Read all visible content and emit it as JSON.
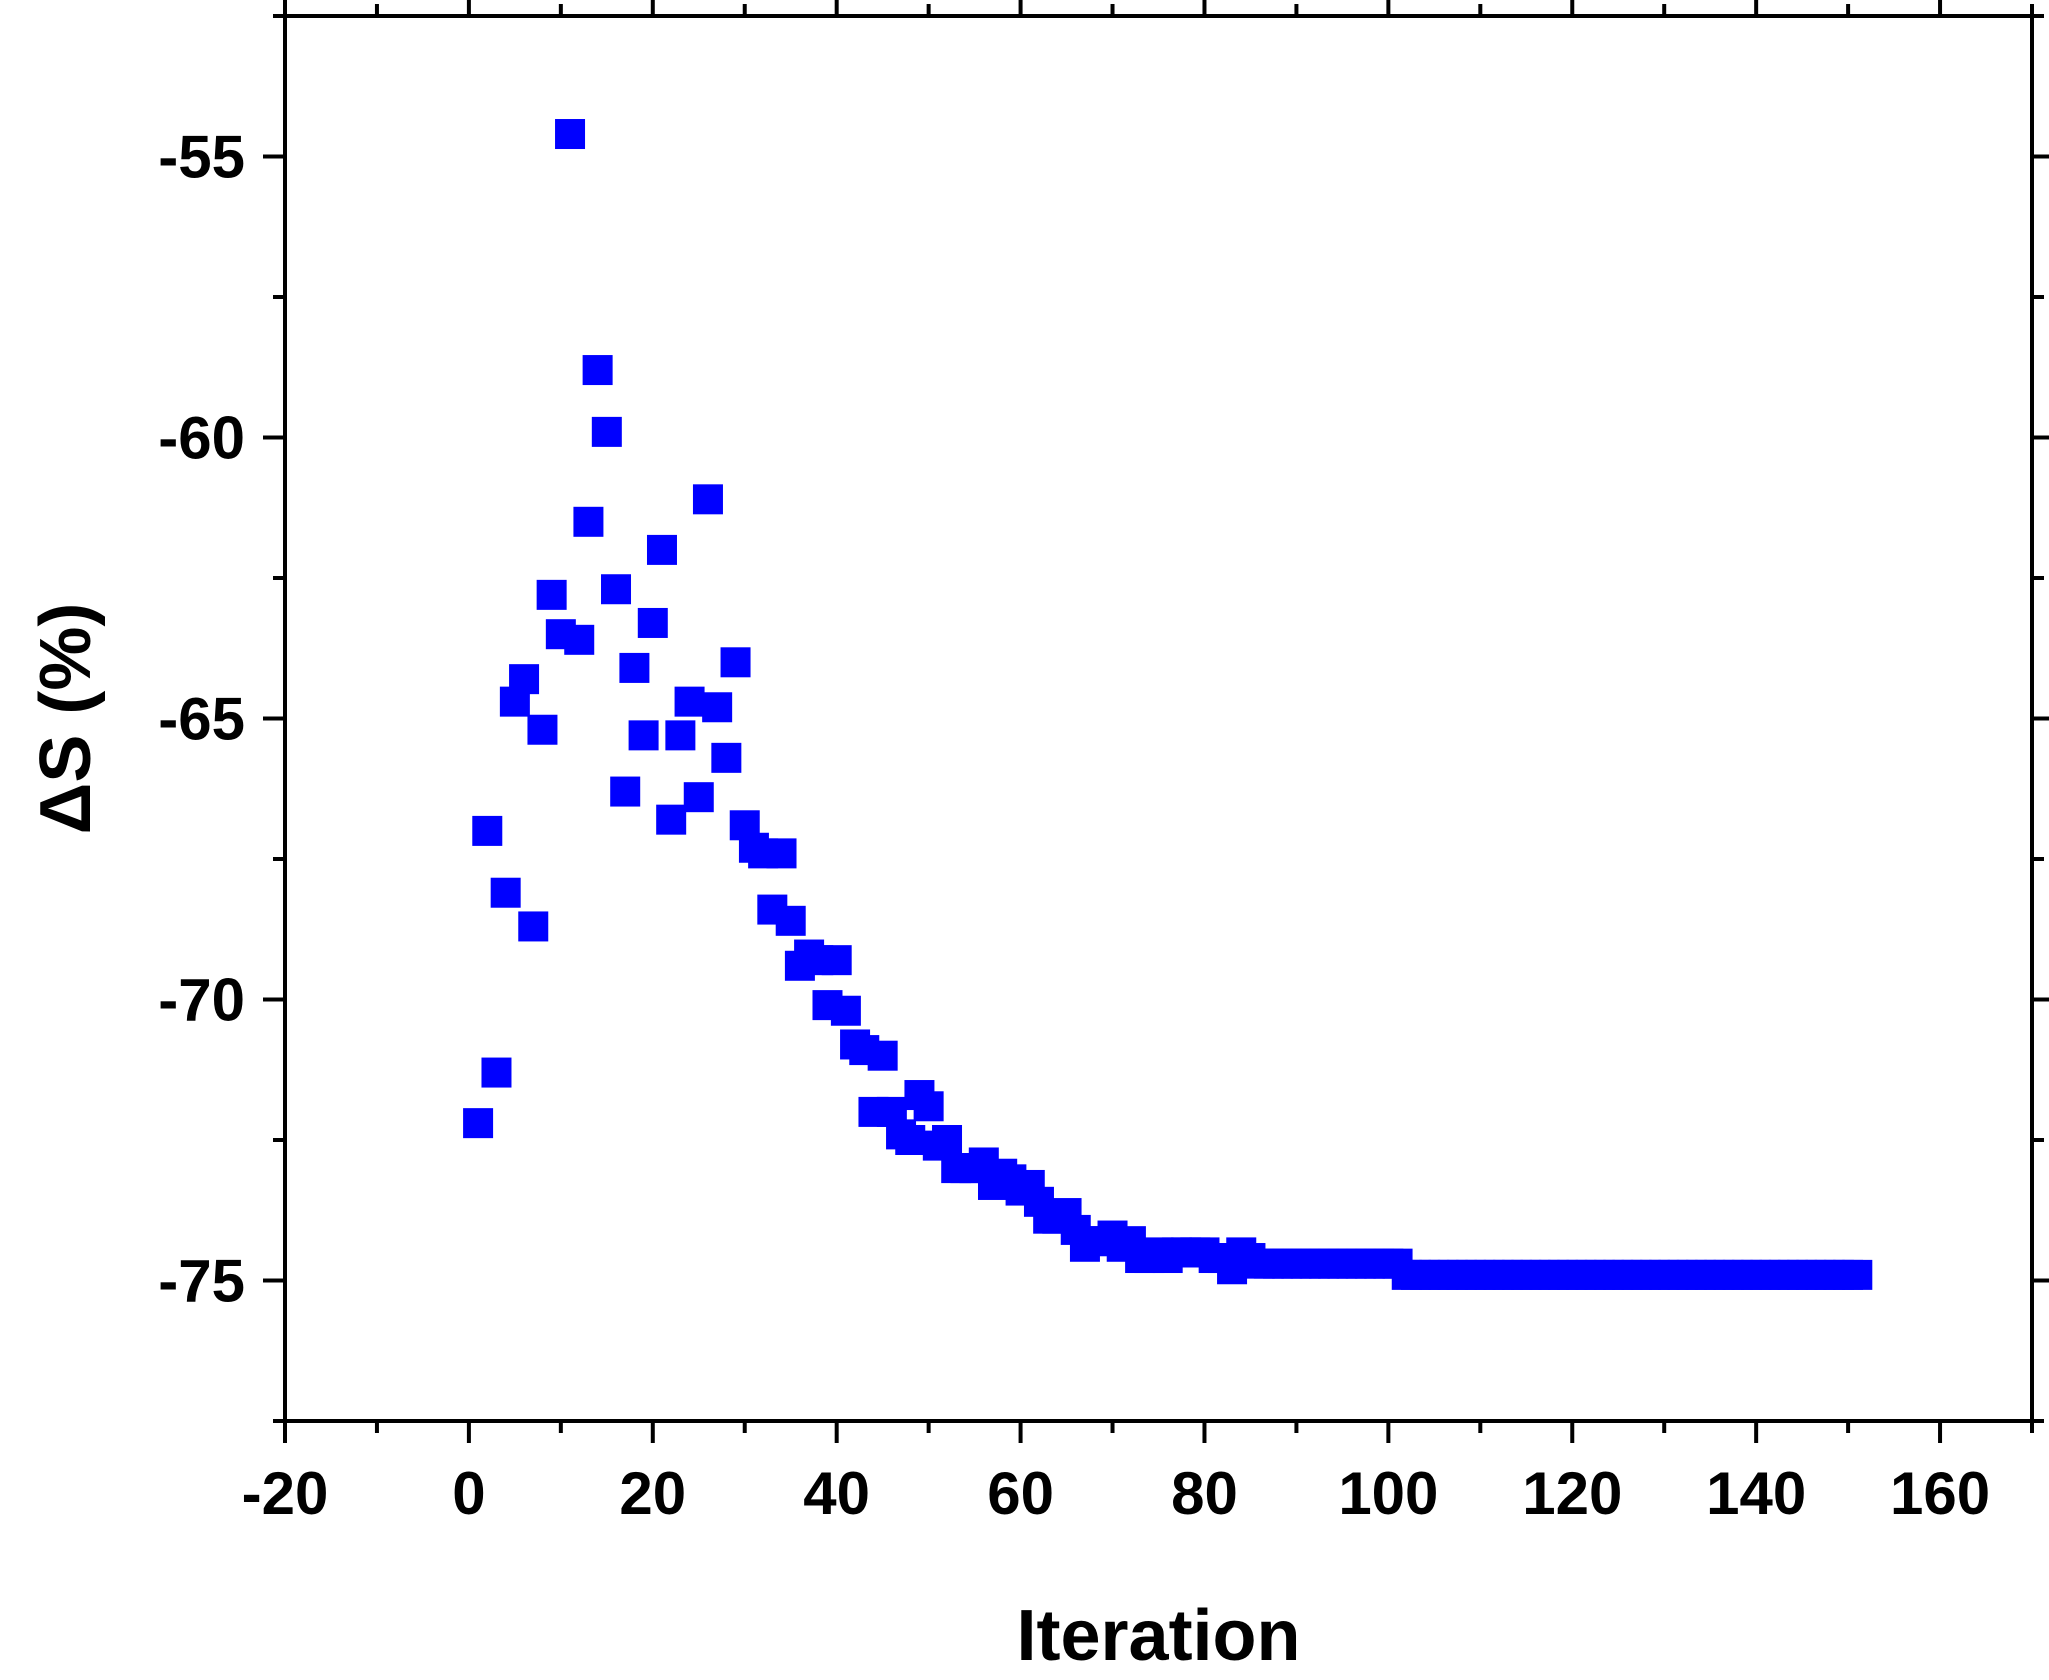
{
  "chart_data": {
    "type": "scatter",
    "xlabel": "Iteration",
    "ylabel": "ΔS (%)",
    "xlim": [
      -20,
      170
    ],
    "ylim": [
      -77.5,
      -52.5
    ],
    "x_ticks": [
      -20,
      0,
      20,
      40,
      60,
      80,
      100,
      120,
      140,
      160
    ],
    "y_ticks": [
      -55,
      -60,
      -65,
      -70,
      -75
    ],
    "grid": false,
    "marker": "square",
    "color": "#0000ff",
    "series": [
      {
        "points": [
          [
            1,
            -72.2
          ],
          [
            2,
            -67.0
          ],
          [
            3,
            -71.3
          ],
          [
            4,
            -68.1
          ],
          [
            5,
            -64.7
          ],
          [
            6,
            -64.3
          ],
          [
            7,
            -68.7
          ],
          [
            8,
            -65.2
          ],
          [
            9,
            -62.8
          ],
          [
            10,
            -63.5
          ],
          [
            11,
            -54.6
          ],
          [
            12,
            -63.6
          ],
          [
            13,
            -61.5
          ],
          [
            14,
            -58.8
          ],
          [
            15,
            -59.9
          ],
          [
            16,
            -62.7
          ],
          [
            17,
            -66.3
          ],
          [
            18,
            -64.1
          ],
          [
            19,
            -65.3
          ],
          [
            20,
            -63.3
          ],
          [
            21,
            -62.0
          ],
          [
            22,
            -66.8
          ],
          [
            23,
            -65.3
          ],
          [
            24,
            -64.7
          ],
          [
            25,
            -66.4
          ],
          [
            26,
            -61.1
          ],
          [
            27,
            -64.8
          ],
          [
            28,
            -65.7
          ],
          [
            29,
            -64.0
          ],
          [
            30,
            -66.9
          ],
          [
            31,
            -67.3
          ],
          [
            32,
            -67.4
          ],
          [
            33,
            -68.4
          ],
          [
            34,
            -67.4
          ],
          [
            35,
            -68.6
          ],
          [
            36,
            -69.4
          ],
          [
            37,
            -69.2
          ],
          [
            38,
            -69.3
          ],
          [
            39,
            -70.1
          ],
          [
            40,
            -69.3
          ],
          [
            41,
            -70.2
          ],
          [
            42,
            -70.8
          ],
          [
            43,
            -70.9
          ],
          [
            44,
            -72.0
          ],
          [
            45,
            -71.0
          ],
          [
            46,
            -72.0
          ],
          [
            47,
            -72.4
          ],
          [
            48,
            -72.5
          ],
          [
            49,
            -71.7
          ],
          [
            50,
            -71.9
          ],
          [
            51,
            -72.6
          ],
          [
            52,
            -72.5
          ],
          [
            53,
            -73.0
          ],
          [
            54,
            -73.0
          ],
          [
            55,
            -73.0
          ],
          [
            56,
            -72.9
          ],
          [
            57,
            -73.3
          ],
          [
            58,
            -73.1
          ],
          [
            59,
            -73.2
          ],
          [
            60,
            -73.4
          ],
          [
            61,
            -73.3
          ],
          [
            62,
            -73.6
          ],
          [
            63,
            -73.9
          ],
          [
            64,
            -73.9
          ],
          [
            65,
            -73.8
          ],
          [
            66,
            -74.1
          ],
          [
            67,
            -74.4
          ],
          [
            68,
            -74.3
          ],
          [
            69,
            -74.3
          ],
          [
            70,
            -74.2
          ],
          [
            71,
            -74.4
          ],
          [
            72,
            -74.3
          ],
          [
            73,
            -74.6
          ],
          [
            74,
            -74.6
          ],
          [
            75,
            -74.5
          ],
          [
            76,
            -74.6
          ],
          [
            77,
            -74.5
          ],
          [
            78,
            -74.5
          ],
          [
            79,
            -74.5
          ],
          [
            80,
            -74.5
          ],
          [
            81,
            -74.6
          ],
          [
            82,
            -74.6
          ],
          [
            83,
            -74.8
          ],
          [
            84,
            -74.5
          ],
          [
            85,
            -74.6
          ],
          [
            86,
            -74.7
          ],
          [
            87,
            -74.7
          ],
          [
            88,
            -74.7
          ],
          [
            89,
            -74.7
          ],
          [
            90,
            -74.7
          ],
          [
            91,
            -74.7
          ],
          [
            92,
            -74.7
          ],
          [
            93,
            -74.7
          ],
          [
            94,
            -74.7
          ],
          [
            95,
            -74.7
          ],
          [
            96,
            -74.7
          ],
          [
            97,
            -74.7
          ],
          [
            98,
            -74.7
          ],
          [
            99,
            -74.7
          ],
          [
            100,
            -74.7
          ],
          [
            101,
            -74.7
          ],
          [
            102,
            -74.9
          ],
          [
            103,
            -74.9
          ],
          [
            104,
            -74.9
          ],
          [
            105,
            -74.9
          ],
          [
            106,
            -74.9
          ],
          [
            107,
            -74.9
          ],
          [
            108,
            -74.9
          ],
          [
            109,
            -74.9
          ],
          [
            110,
            -74.9
          ],
          [
            111,
            -74.9
          ],
          [
            112,
            -74.9
          ],
          [
            113,
            -74.9
          ],
          [
            114,
            -74.9
          ],
          [
            115,
            -74.9
          ],
          [
            116,
            -74.9
          ],
          [
            117,
            -74.9
          ],
          [
            118,
            -74.9
          ],
          [
            119,
            -74.9
          ],
          [
            120,
            -74.9
          ],
          [
            121,
            -74.9
          ],
          [
            122,
            -74.9
          ],
          [
            123,
            -74.9
          ],
          [
            124,
            -74.9
          ],
          [
            125,
            -74.9
          ],
          [
            126,
            -74.9
          ],
          [
            127,
            -74.9
          ],
          [
            128,
            -74.9
          ],
          [
            129,
            -74.9
          ],
          [
            130,
            -74.9
          ],
          [
            131,
            -74.9
          ],
          [
            132,
            -74.9
          ],
          [
            133,
            -74.9
          ],
          [
            134,
            -74.9
          ],
          [
            135,
            -74.9
          ],
          [
            136,
            -74.9
          ],
          [
            137,
            -74.9
          ],
          [
            138,
            -74.9
          ],
          [
            139,
            -74.9
          ],
          [
            140,
            -74.9
          ],
          [
            141,
            -74.9
          ],
          [
            142,
            -74.9
          ],
          [
            143,
            -74.9
          ],
          [
            144,
            -74.9
          ],
          [
            145,
            -74.9
          ],
          [
            146,
            -74.9
          ],
          [
            147,
            -74.9
          ],
          [
            148,
            -74.9
          ],
          [
            149,
            -74.9
          ],
          [
            150,
            -74.9
          ],
          [
            151,
            -74.9
          ]
        ]
      }
    ]
  }
}
